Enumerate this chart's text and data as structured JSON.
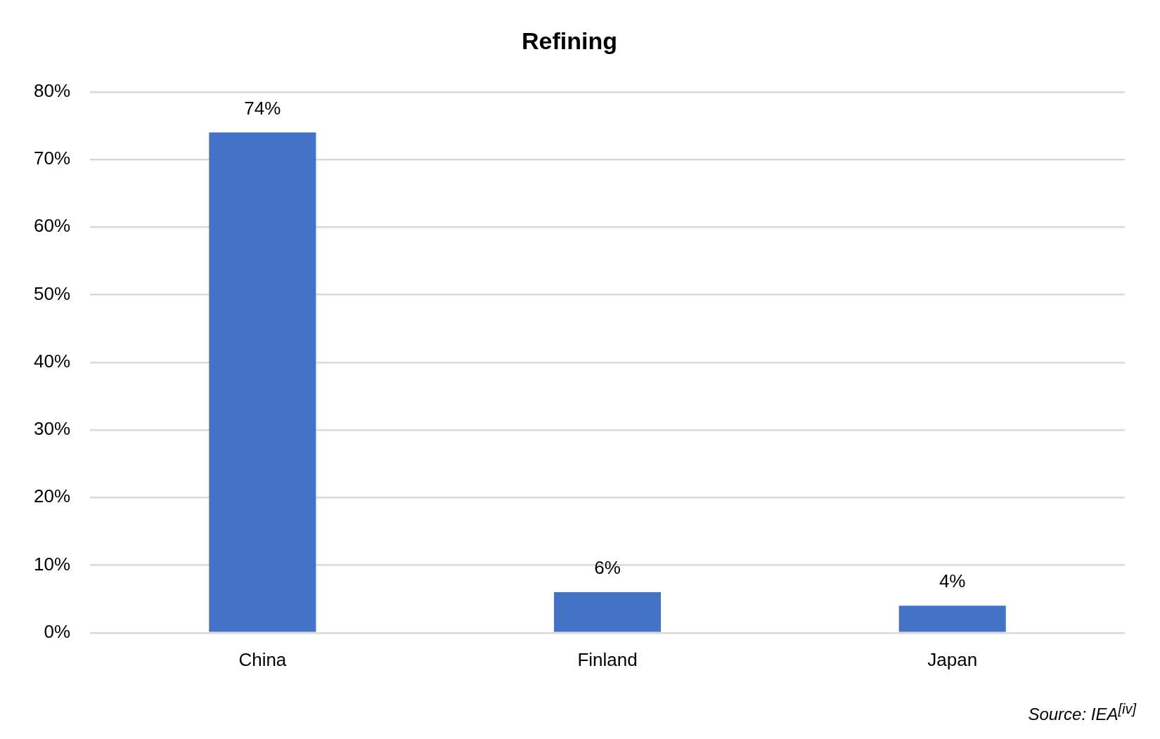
{
  "chart_data": {
    "type": "bar",
    "title": "Refining",
    "categories": [
      "China",
      "Finland",
      "Japan"
    ],
    "values": [
      74,
      6,
      4
    ],
    "value_labels": [
      "74%",
      "6%",
      "4%"
    ],
    "color": "#4472c4",
    "ylim": [
      0,
      80
    ],
    "yticks": [
      {
        "value": 0,
        "label": "0%"
      },
      {
        "value": 10,
        "label": "10%"
      },
      {
        "value": 20,
        "label": "20%"
      },
      {
        "value": 30,
        "label": "30%"
      },
      {
        "value": 40,
        "label": "40%"
      },
      {
        "value": 50,
        "label": "50%"
      },
      {
        "value": 60,
        "label": "60%"
      },
      {
        "value": 70,
        "label": "70%"
      },
      {
        "value": 80,
        "label": "80%"
      }
    ],
    "grid": "y",
    "legend": false,
    "annotations": [
      "Source: IEA$^{[iv]}$"
    ]
  }
}
